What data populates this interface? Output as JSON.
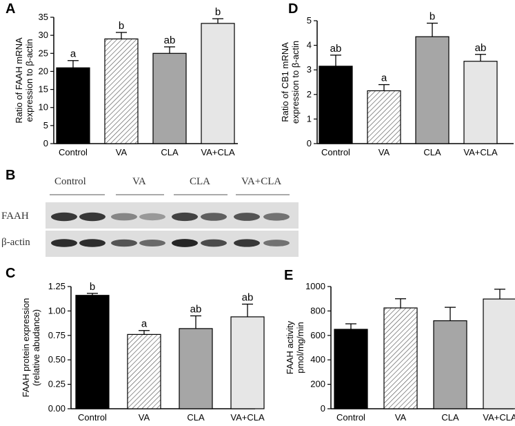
{
  "colors": {
    "control": "#000000",
    "va": "#ffffff",
    "cla": "#a6a6a6",
    "vacla": "#e6e6e6",
    "va_hatch": "#555555",
    "wb_band": "#1a1a1a",
    "wb_bg": "#dedede"
  },
  "panels": {
    "A": {
      "letter": "A",
      "chart_data": {
        "type": "bar",
        "categories": [
          "Control",
          "VA",
          "CLA",
          "VA+CLA"
        ],
        "values": [
          21,
          29,
          25,
          33.3
        ],
        "errors": [
          2,
          1.8,
          1.8,
          1.3
        ],
        "sig_letters": [
          "a",
          "b",
          "ab",
          "b"
        ],
        "ylabel": "Ratio of  FAAH mRNA\nexpression to β-actin",
        "ylim": [
          0,
          35
        ],
        "yticks": [
          "0",
          "5",
          "10",
          "15",
          "20",
          "25",
          "30",
          "35"
        ],
        "ytick_values": [
          0,
          5,
          10,
          15,
          20,
          25,
          30,
          35
        ]
      }
    },
    "D": {
      "letter": "D",
      "chart_data": {
        "type": "bar",
        "categories": [
          "Control",
          "VA",
          "CLA",
          "VA+CLA"
        ],
        "values": [
          3.15,
          2.15,
          4.35,
          3.35
        ],
        "errors": [
          0.45,
          0.25,
          0.55,
          0.28
        ],
        "sig_letters": [
          "ab",
          "a",
          "b",
          "ab"
        ],
        "ylabel": "Ratio of CB1 mRNA\nexpression to β-actin",
        "ylim": [
          0,
          5
        ],
        "yticks": [
          "0",
          "1",
          "2",
          "3",
          "4",
          "5"
        ],
        "ytick_values": [
          0,
          1,
          2,
          3,
          4,
          5
        ]
      }
    },
    "B": {
      "letter": "B",
      "groups": [
        "Control",
        "VA",
        "CLA",
        "VA+CLA"
      ],
      "row_labels": [
        "FAAH",
        "β-actin"
      ],
      "faah_band_darkness": [
        0.85,
        0.85,
        0.45,
        0.35,
        0.8,
        0.65,
        0.7,
        0.55
      ],
      "actin_band_darkness": [
        0.9,
        0.9,
        0.7,
        0.6,
        0.95,
        0.75,
        0.85,
        0.55
      ]
    },
    "C": {
      "letter": "C",
      "chart_data": {
        "type": "bar",
        "categories": [
          "Control",
          "VA",
          "CLA",
          "VA+CLA"
        ],
        "values": [
          1.16,
          0.76,
          0.82,
          0.94
        ],
        "errors": [
          0.02,
          0.04,
          0.13,
          0.13
        ],
        "sig_letters": [
          "b",
          "a",
          "ab",
          "ab"
        ],
        "ylabel": "FAAH protein expression\n(relative abudance)",
        "ylim": [
          0,
          1.25
        ],
        "yticks": [
          "0.00",
          "0.25",
          "0.50",
          "0.75",
          "1.00",
          "1.25"
        ],
        "ytick_values": [
          0,
          0.25,
          0.5,
          0.75,
          1.0,
          1.25
        ]
      }
    },
    "E": {
      "letter": "E",
      "chart_data": {
        "type": "bar",
        "categories": [
          "Control",
          "VA",
          "CLA",
          "VA+CLA"
        ],
        "values": [
          650,
          825,
          720,
          898
        ],
        "errors": [
          45,
          75,
          110,
          80
        ],
        "sig_letters": [
          "",
          "",
          "",
          ""
        ],
        "ylabel": "FAAH activity\npmol/mg/min",
        "ylim": [
          0,
          1000
        ],
        "yticks": [
          "0",
          "200",
          "400",
          "600",
          "800",
          "1000"
        ],
        "ytick_values": [
          0,
          200,
          400,
          600,
          800,
          1000
        ]
      }
    }
  }
}
